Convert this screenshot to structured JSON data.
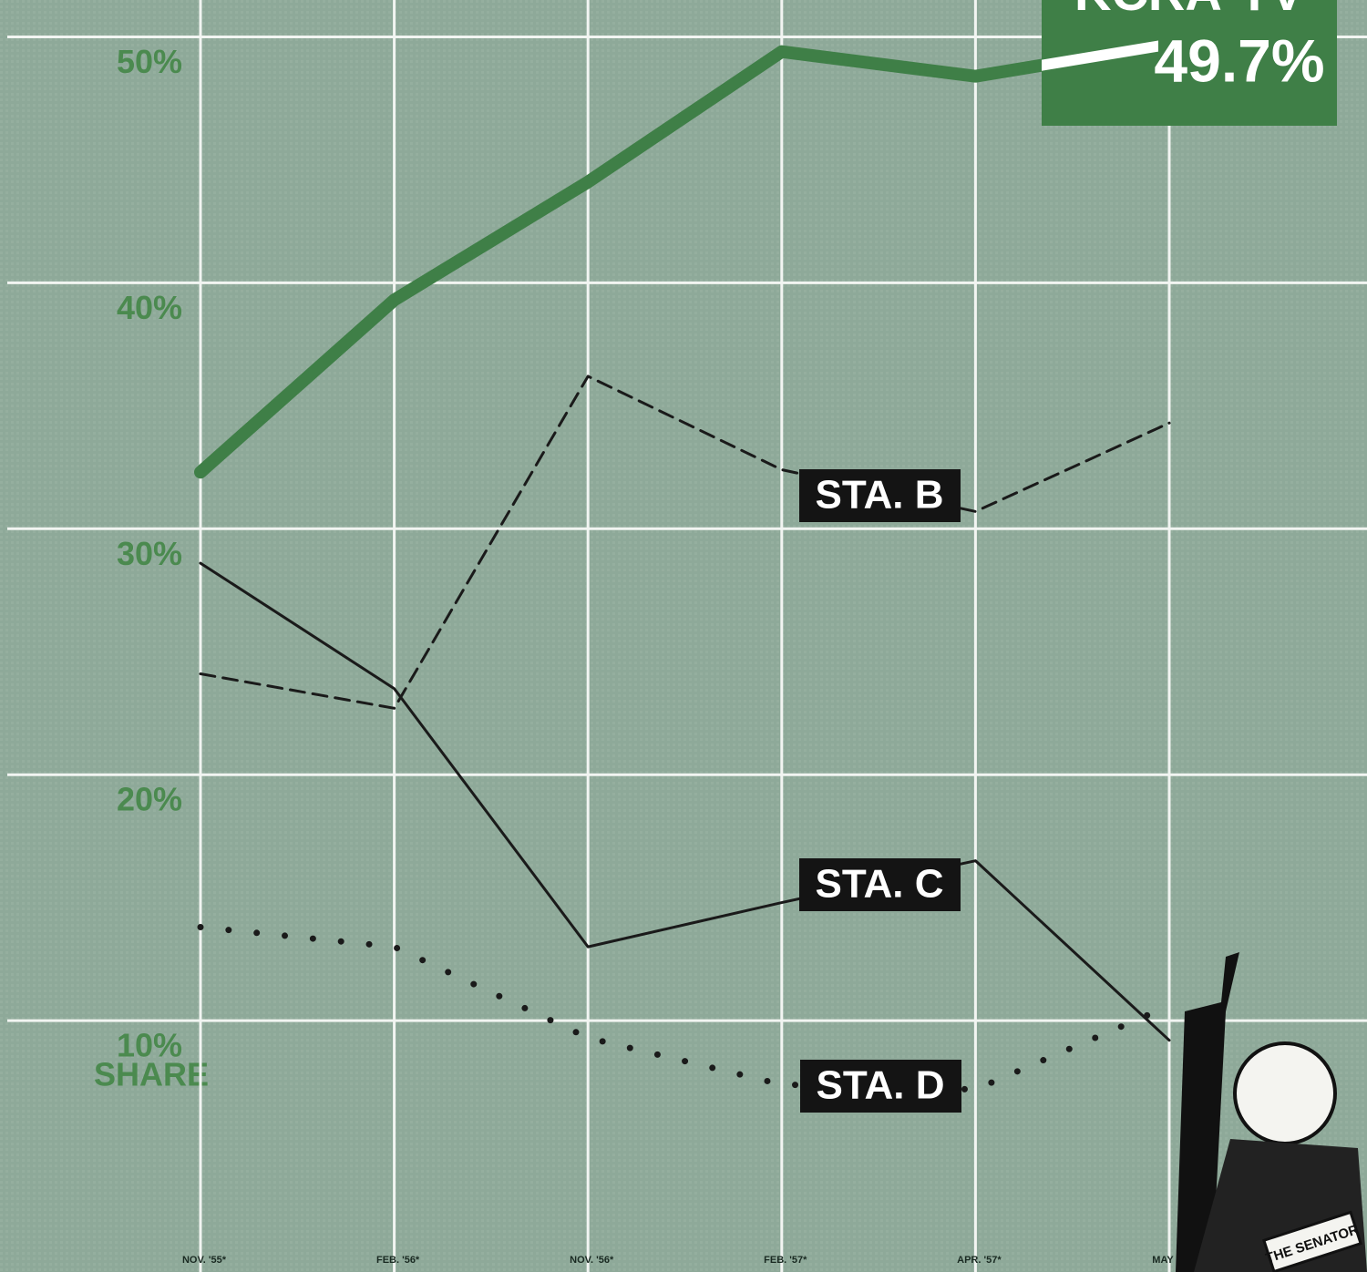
{
  "chart_data": {
    "type": "line",
    "categories": [
      "NOV. '55*",
      "FEB. '56*",
      "NOV. '56*",
      "FEB. '57*",
      "APR. '57*",
      "MAY '57*"
    ],
    "series": [
      {
        "name": "KCRA-TV",
        "color": "#3f7f47",
        "dash": "solid",
        "values": [
          32.3,
          39.3,
          44.1,
          49.4,
          48.4,
          49.7
        ],
        "value_labels": [
          null,
          null,
          null,
          null,
          null,
          "49.7%"
        ]
      },
      {
        "name": "STA. B",
        "color": "#1a1a1a",
        "dash": "dashed",
        "values": [
          24.1,
          22.7,
          36.2,
          32.4,
          30.7,
          34.3
        ]
      },
      {
        "name": "STA. C",
        "color": "#1a1a1a",
        "dash": "solid",
        "values": [
          28.6,
          23.5,
          13.0,
          14.8,
          16.5,
          9.2
        ]
      },
      {
        "name": "STA. D",
        "color": "#1a1a1a",
        "dash": "dotted",
        "values": [
          13.8,
          13.0,
          9.3,
          7.4,
          7.2,
          10.6
        ]
      }
    ],
    "ylabel": "SHARE",
    "ylim": [
      0,
      51.5
    ],
    "yticks": [
      {
        "value": 10,
        "label": "10%"
      },
      {
        "value": 20,
        "label": "20%"
      },
      {
        "value": 30,
        "label": "30%"
      },
      {
        "value": 40,
        "label": "40%"
      },
      {
        "value": 50,
        "label": "50%"
      }
    ],
    "grid": true,
    "mascot_label": "THE SENATOR"
  }
}
